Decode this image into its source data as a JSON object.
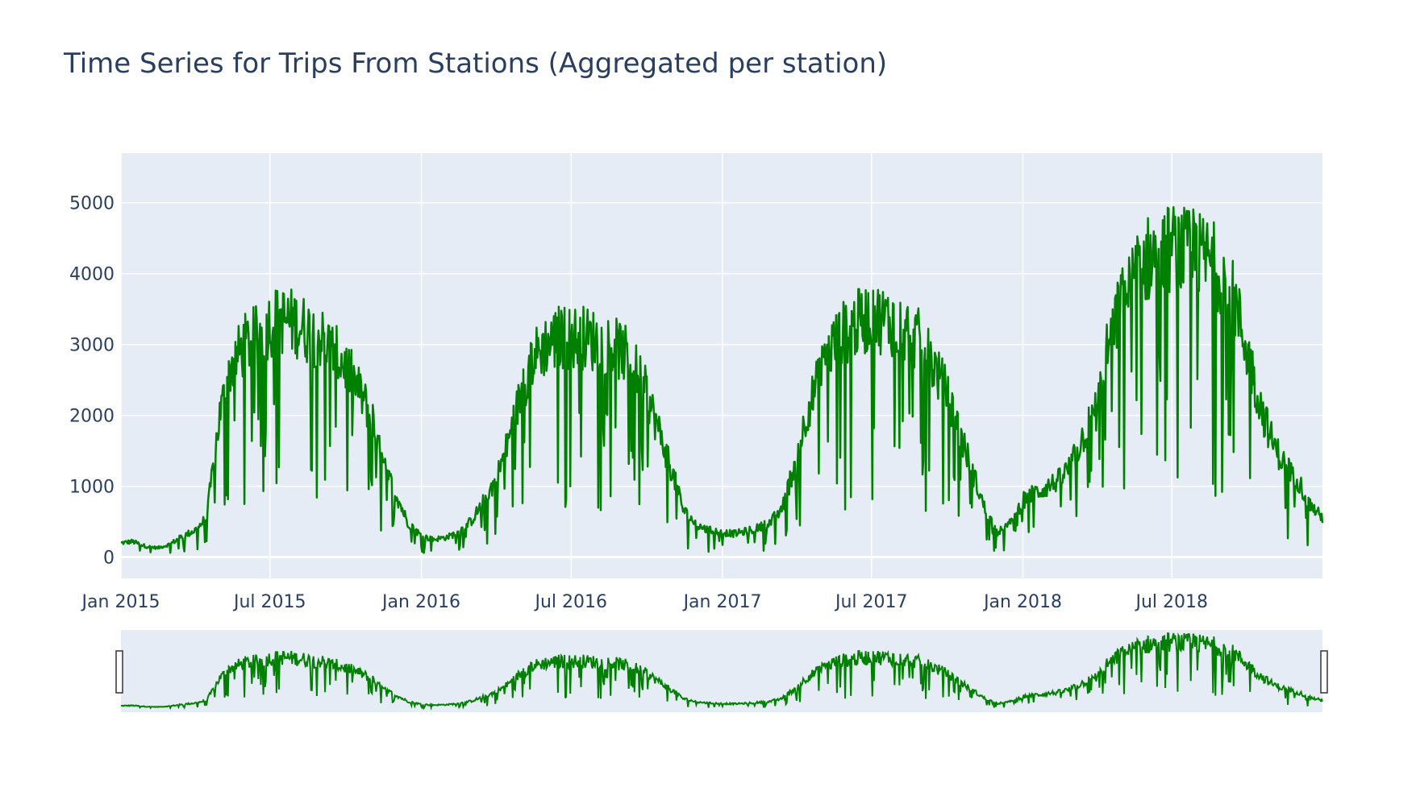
{
  "chart_data": {
    "type": "line",
    "title": "Time Series for Trips From Stations (Aggregated per station)",
    "xlabel": "",
    "ylabel": "",
    "xlim": [
      "2015-01-01",
      "2018-12-31"
    ],
    "ylim": [
      -300,
      5700
    ],
    "x_ticks": [
      {
        "date": "2015-01-01",
        "label": "Jan 2015"
      },
      {
        "date": "2015-07-01",
        "label": "Jul 2015"
      },
      {
        "date": "2016-01-01",
        "label": "Jan 2016"
      },
      {
        "date": "2016-07-01",
        "label": "Jul 2016"
      },
      {
        "date": "2017-01-01",
        "label": "Jan 2017"
      },
      {
        "date": "2017-07-01",
        "label": "Jul 2017"
      },
      {
        "date": "2018-01-01",
        "label": "Jan 2018"
      },
      {
        "date": "2018-07-01",
        "label": "Jul 2018"
      }
    ],
    "y_ticks": [
      {
        "value": 0,
        "label": "0"
      },
      {
        "value": 1000,
        "label": "1000"
      },
      {
        "value": 2000,
        "label": "2000"
      },
      {
        "value": 3000,
        "label": "3000"
      },
      {
        "value": 4000,
        "label": "4000"
      },
      {
        "value": 5000,
        "label": "5000"
      }
    ],
    "grid": true,
    "legend": "none",
    "rangeslider": true,
    "series": [
      {
        "color": "#008000",
        "x": [
          "2015-01-01",
          "2015-01-15",
          "2015-02-01",
          "2015-02-15",
          "2015-03-01",
          "2015-03-15",
          "2015-04-01",
          "2015-04-15",
          "2015-05-01",
          "2015-05-15",
          "2015-06-01",
          "2015-06-15",
          "2015-07-01",
          "2015-07-15",
          "2015-08-01",
          "2015-08-15",
          "2015-09-01",
          "2015-09-15",
          "2015-10-01",
          "2015-10-15",
          "2015-11-01",
          "2015-11-15",
          "2015-12-01",
          "2015-12-15",
          "2016-01-01",
          "2016-01-15",
          "2016-02-01",
          "2016-02-15",
          "2016-03-01",
          "2016-03-15",
          "2016-04-01",
          "2016-04-15",
          "2016-05-01",
          "2016-05-15",
          "2016-06-01",
          "2016-06-15",
          "2016-07-01",
          "2016-07-15",
          "2016-08-01",
          "2016-08-15",
          "2016-09-01",
          "2016-09-15",
          "2016-10-01",
          "2016-10-15",
          "2016-11-01",
          "2016-11-15",
          "2016-12-01",
          "2016-12-15",
          "2017-01-01",
          "2017-01-15",
          "2017-02-01",
          "2017-02-15",
          "2017-03-01",
          "2017-03-15",
          "2017-04-01",
          "2017-04-15",
          "2017-05-01",
          "2017-05-15",
          "2017-06-01",
          "2017-06-15",
          "2017-07-01",
          "2017-07-15",
          "2017-08-01",
          "2017-08-15",
          "2017-09-01",
          "2017-09-15",
          "2017-10-01",
          "2017-10-15",
          "2017-11-01",
          "2017-11-15",
          "2017-12-01",
          "2017-12-15",
          "2018-01-01",
          "2018-01-15",
          "2018-02-01",
          "2018-02-15",
          "2018-03-01",
          "2018-03-15",
          "2018-04-01",
          "2018-04-15",
          "2018-05-01",
          "2018-05-15",
          "2018-06-01",
          "2018-06-15",
          "2018-07-01",
          "2018-07-15",
          "2018-08-01",
          "2018-08-15",
          "2018-09-01",
          "2018-09-15",
          "2018-10-01",
          "2018-10-15",
          "2018-11-01",
          "2018-11-15",
          "2018-12-01",
          "2018-12-15",
          "2018-12-31"
        ],
        "values": [
          200,
          220,
          150,
          130,
          180,
          280,
          380,
          550,
          2000,
          2700,
          3000,
          3100,
          3300,
          3350,
          3300,
          3200,
          3100,
          2900,
          2700,
          2400,
          2000,
          1300,
          900,
          500,
          300,
          250,
          280,
          350,
          500,
          750,
          1100,
          1600,
          2300,
          2800,
          3000,
          3100,
          3100,
          3100,
          3050,
          3000,
          2900,
          2700,
          2300,
          1800,
          1200,
          650,
          450,
          380,
          350,
          330,
          370,
          420,
          500,
          700,
          1400,
          2100,
          2600,
          3000,
          3200,
          3300,
          3400,
          3350,
          3300,
          3200,
          3000,
          2700,
          2300,
          1800,
          1200,
          700,
          350,
          450,
          800,
          900,
          1000,
          1100,
          1300,
          1700,
          2100,
          3000,
          3600,
          3900,
          4200,
          4300,
          4350,
          4300,
          4250,
          4200,
          4000,
          3600,
          2900,
          2200,
          1600,
          1300,
          1100,
          750,
          550
        ]
      }
    ]
  }
}
